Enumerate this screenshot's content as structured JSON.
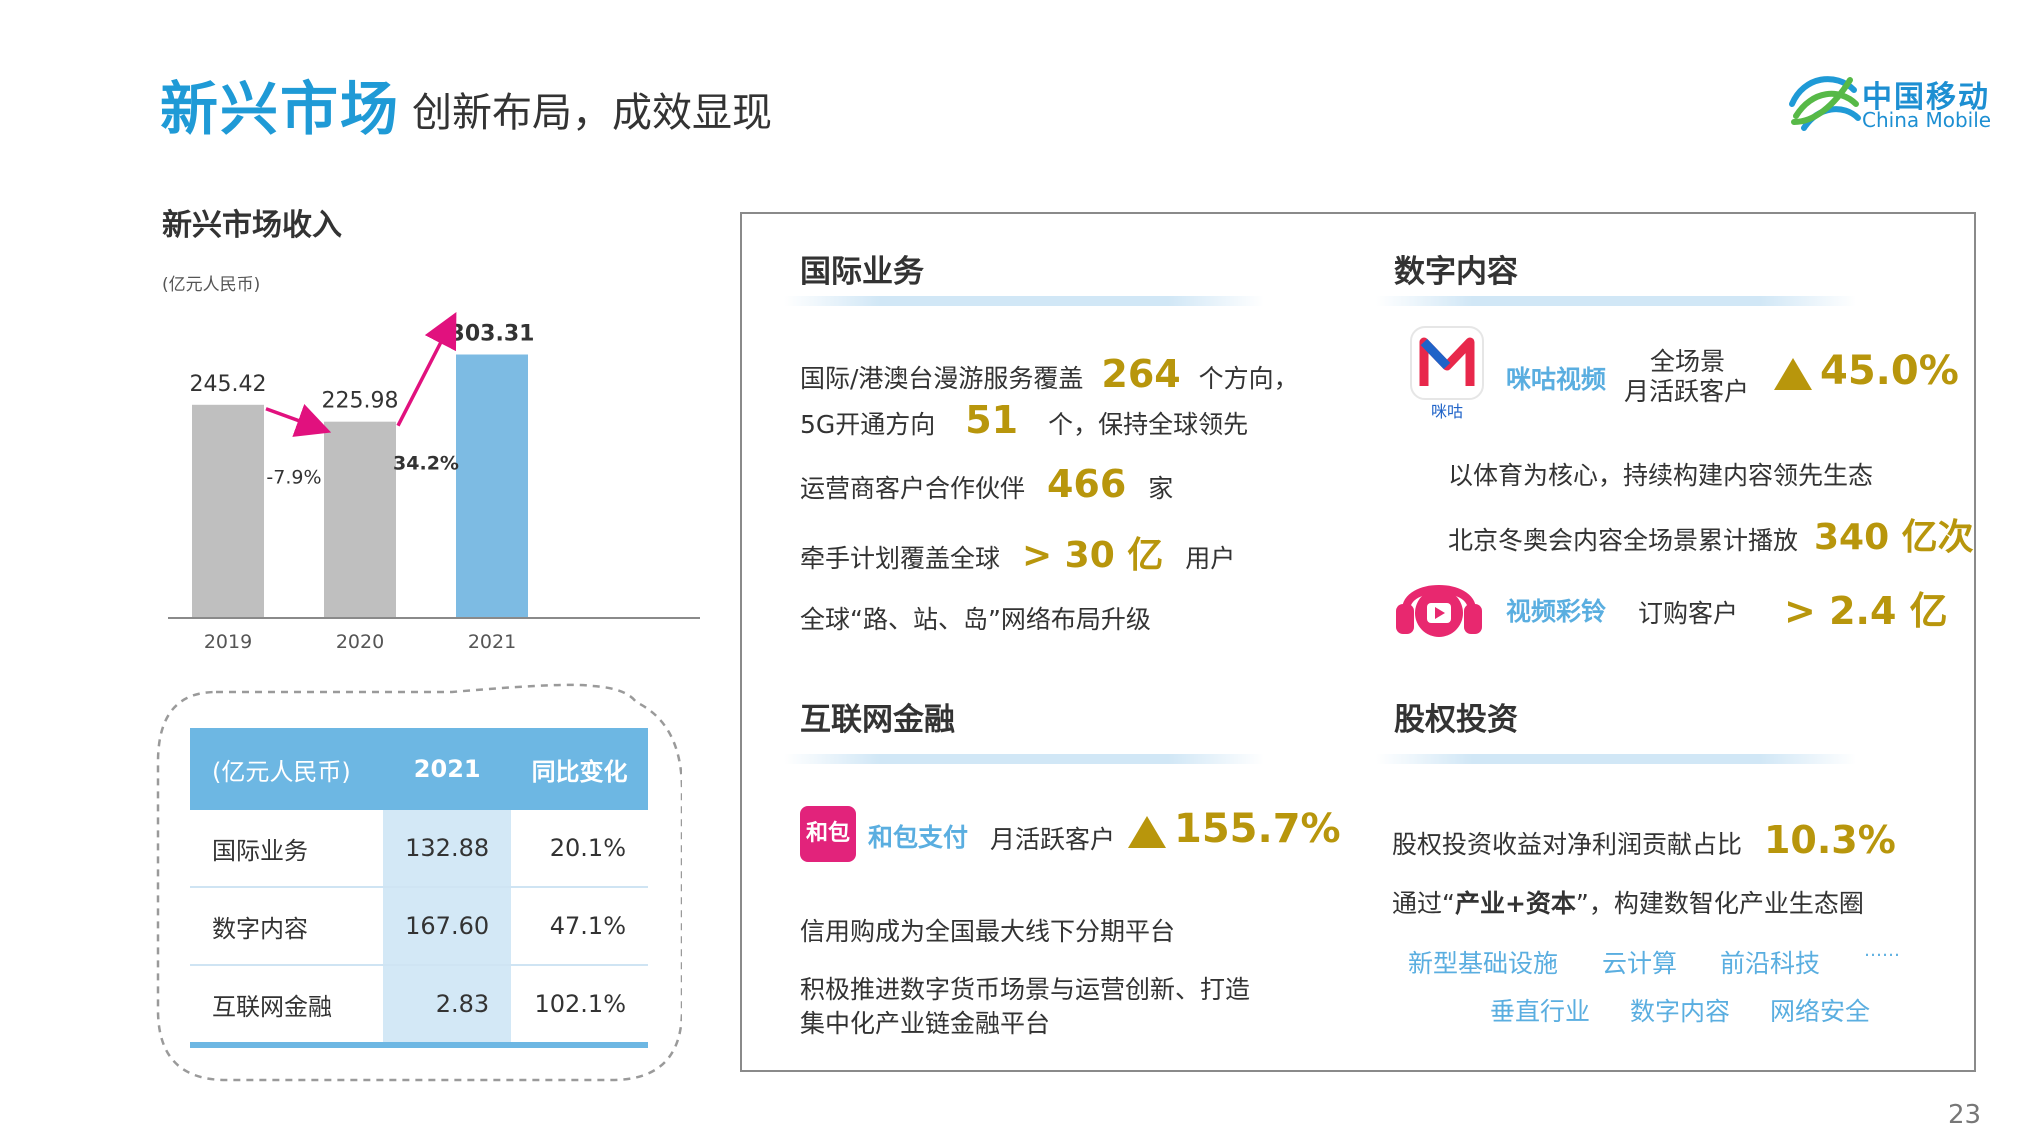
{
  "header": {
    "title": "新兴市场",
    "subtitle": "创新布局，成效显现"
  },
  "logo": {
    "cn": "中国移动",
    "en": "China Mobile"
  },
  "page_number": "23",
  "left": {
    "chart_title": "新兴市场收入",
    "unit": "(亿元人民币)"
  },
  "chart_data": {
    "type": "bar",
    "categories": [
      "2019",
      "2020",
      "2021"
    ],
    "values": [
      245.42,
      225.98,
      303.31
    ],
    "value_labels": [
      "245.42",
      "225.98",
      "303.31"
    ],
    "bar_colors": [
      "#bfbfbf",
      "#bfbfbf",
      "#7dbbe3"
    ],
    "changes": [
      "-7.9%",
      "34.2%"
    ],
    "arrow_color": "#e1117e",
    "ylim": [
      0,
      320
    ]
  },
  "table": {
    "headers": [
      "(亿元人民币)",
      "2021",
      "同比变化"
    ],
    "rows": [
      [
        "国际业务",
        "132.88",
        "20.1%"
      ],
      [
        "数字内容",
        "167.60",
        "47.1%"
      ],
      [
        "互联网金融",
        "2.83",
        "102.1%"
      ]
    ]
  },
  "intl": {
    "title": "国际业务",
    "l1_pre": "国际/港澳台漫游服务覆盖",
    "l1_num": "264",
    "l1_post": "个方向，",
    "l2_pre": "5G开通方向",
    "l2_num": "51",
    "l2_post": "个，保持全球领先",
    "l3_pre": "运营商客户合作伙伴",
    "l3_num": "466",
    "l3_post": "家",
    "l4_pre": "牵手计划覆盖全球",
    "l4_num": "> 30 亿",
    "l4_post": "用户",
    "l5": "全球“路、站、岛”网络布局升级"
  },
  "digital": {
    "title": "数字内容",
    "migu_name": "咪咕视频",
    "migu_logo_text": "咪咕",
    "migu_label_1": "全场景",
    "migu_label_2": "月活跃客户",
    "migu_growth": "45.0%",
    "line1": "以体育为核心，持续构建内容领先生态",
    "line2_pre": "北京冬奥会内容全场景累计播放",
    "line2_num": "340 亿次",
    "ring_name": "视频彩铃",
    "ring_label": "订购客户",
    "ring_num": "> 2.4 亿"
  },
  "fin": {
    "title": "互联网金融",
    "hebao_name": "和包支付",
    "hebao_icon": "和包",
    "hebao_label": "月活跃客户",
    "hebao_growth": "155.7%",
    "line1": "信用购成为全国最大线下分期平台",
    "line2": "积极推进数字货币场景与运营创新、打造",
    "line3": "集中化产业链金融平台"
  },
  "equity": {
    "title": "股权投资",
    "line1_pre": "股权投资收益对净利润贡献占比",
    "line1_num": "10.3%",
    "line2_pre": "通过“",
    "line2_bold": "产业+资本",
    "line2_post": "”，构建数智化产业生态圈",
    "tags": [
      "新型基础设施",
      "云计算",
      "前沿科技",
      "……",
      "垂直行业",
      "数字内容",
      "网络安全"
    ]
  }
}
